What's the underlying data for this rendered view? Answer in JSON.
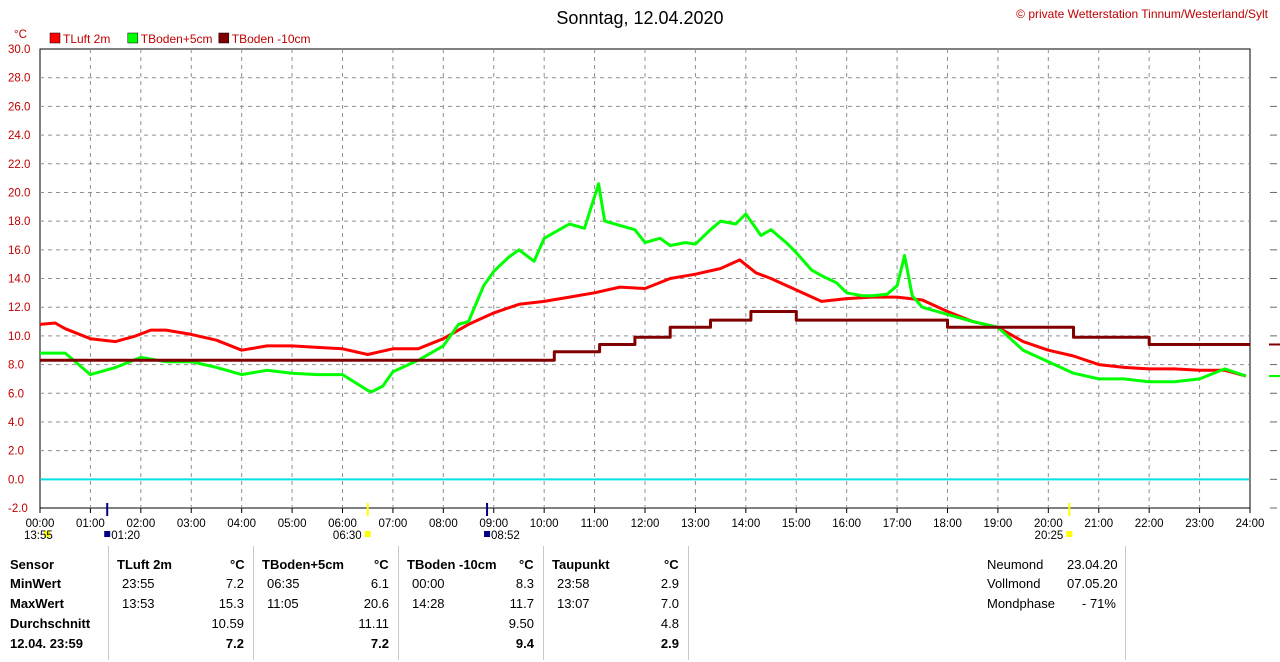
{
  "title": "Sonntag, 12.04.2020",
  "copyright": "© private Wetterstation Tinnum/Westerland/Sylt",
  "y_unit": "°C",
  "sun_moon_markers": [
    {
      "name": "sunrise",
      "label": "06:30",
      "x": 6.5,
      "color": "#ffff00"
    },
    {
      "name": "sunset",
      "label": "20:25",
      "x": 20.4167,
      "color": "#ffff00"
    },
    {
      "name": "moonrise",
      "label": "01:20",
      "x": 1.333,
      "color": "#000080"
    },
    {
      "name": "moonset",
      "label": "08:52",
      "x": 8.867,
      "color": "#000080"
    },
    {
      "name": "moonset-prev",
      "label": "13:55",
      "x": 0.0,
      "color": "#ffff00"
    }
  ],
  "chart_data": {
    "type": "line",
    "title": "Sonntag, 12.04.2020",
    "xlim": [
      0,
      24
    ],
    "ylim": [
      -2,
      30
    ],
    "x_ticks": [
      "00:00",
      "01:00",
      "02:00",
      "03:00",
      "04:00",
      "05:00",
      "06:00",
      "07:00",
      "08:00",
      "09:00",
      "10:00",
      "11:00",
      "12:00",
      "13:00",
      "14:00",
      "15:00",
      "16:00",
      "17:00",
      "18:00",
      "19:00",
      "20:00",
      "21:00",
      "22:00",
      "23:00",
      "24:00"
    ],
    "y_ticks": [
      "-2.0",
      "0.0",
      "2.0",
      "4.0",
      "6.0",
      "8.0",
      "10.0",
      "12.0",
      "14.0",
      "16.0",
      "18.0",
      "20.0",
      "22.0",
      "24.0",
      "26.0",
      "28.0",
      "30.0"
    ],
    "grid": true,
    "reference_line": {
      "y": 0,
      "color": "#00e0e0"
    },
    "series": [
      {
        "name": "TLuft 2m",
        "color": "#ff0000",
        "width": 3,
        "x": [
          0,
          0.3,
          0.5,
          1.0,
          1.5,
          1.9,
          2.2,
          2.5,
          3.0,
          3.5,
          4.0,
          4.5,
          5.0,
          5.5,
          6.0,
          6.5,
          7.0,
          7.5,
          8.0,
          8.5,
          9.0,
          9.5,
          10.0,
          10.5,
          11.0,
          11.5,
          12.0,
          12.5,
          13.0,
          13.5,
          13.88,
          14.2,
          14.5,
          15.0,
          15.5,
          16.0,
          16.5,
          17.0,
          17.5,
          18.0,
          18.5,
          19.0,
          19.5,
          20.0,
          20.5,
          21.0,
          21.5,
          22.0,
          22.5,
          23.0,
          23.5,
          23.92
        ],
        "y": [
          10.8,
          10.9,
          10.5,
          9.8,
          9.6,
          10.0,
          10.4,
          10.4,
          10.1,
          9.7,
          9.0,
          9.3,
          9.3,
          9.2,
          9.1,
          8.7,
          9.1,
          9.1,
          9.8,
          10.8,
          11.6,
          12.2,
          12.4,
          12.7,
          13.0,
          13.4,
          13.3,
          14.0,
          14.3,
          14.7,
          15.3,
          14.4,
          14.0,
          13.2,
          12.4,
          12.6,
          12.7,
          12.7,
          12.5,
          11.7,
          11.0,
          10.6,
          9.6,
          9.0,
          8.6,
          8.0,
          7.8,
          7.7,
          7.7,
          7.6,
          7.6,
          7.2
        ]
      },
      {
        "name": "TBoden+5cm",
        "color": "#00ff00",
        "width": 3,
        "x": [
          0,
          0.5,
          1.0,
          1.5,
          2.0,
          2.5,
          3.0,
          3.5,
          4.0,
          4.5,
          5.0,
          5.5,
          6.0,
          6.5,
          6.58,
          6.8,
          7.0,
          7.5,
          8.0,
          8.3,
          8.5,
          8.8,
          9.0,
          9.3,
          9.5,
          9.8,
          10.0,
          10.3,
          10.5,
          10.8,
          11.08,
          11.2,
          11.5,
          11.8,
          12.0,
          12.3,
          12.5,
          12.8,
          13.0,
          13.3,
          13.5,
          13.8,
          14.0,
          14.3,
          14.5,
          14.8,
          15.0,
          15.3,
          15.5,
          15.8,
          16.0,
          16.3,
          16.5,
          16.8,
          17.0,
          17.15,
          17.3,
          17.5,
          18.0,
          18.5,
          19.0,
          19.5,
          20.0,
          20.5,
          21.0,
          21.5,
          22.0,
          22.5,
          23.0,
          23.5,
          23.92
        ],
        "y": [
          8.8,
          8.8,
          7.3,
          7.8,
          8.5,
          8.2,
          8.2,
          7.8,
          7.3,
          7.6,
          7.4,
          7.3,
          7.3,
          6.2,
          6.1,
          6.5,
          7.5,
          8.3,
          9.3,
          10.8,
          11.0,
          13.5,
          14.5,
          15.5,
          16.0,
          15.2,
          16.8,
          17.4,
          17.8,
          17.5,
          20.6,
          18.0,
          17.7,
          17.4,
          16.5,
          16.8,
          16.3,
          16.5,
          16.4,
          17.4,
          18.0,
          17.8,
          18.5,
          17.0,
          17.4,
          16.5,
          15.8,
          14.6,
          14.2,
          13.7,
          13.0,
          12.8,
          12.8,
          12.9,
          13.5,
          15.6,
          12.8,
          12.0,
          11.5,
          11.0,
          10.6,
          9.0,
          8.2,
          7.4,
          7.0,
          7.0,
          6.8,
          6.8,
          7.0,
          7.7,
          7.2
        ]
      },
      {
        "name": "TBoden -10cm",
        "color": "#800000",
        "width": 3,
        "x": [
          0,
          10.2,
          10.2,
          11.1,
          11.1,
          11.8,
          11.8,
          12.5,
          12.5,
          13.3,
          13.3,
          14.1,
          14.1,
          15.0,
          15.0,
          18.0,
          18.0,
          20.5,
          20.5,
          22.0,
          22.0,
          23.5,
          23.5,
          24.0
        ],
        "y": [
          8.3,
          8.3,
          8.9,
          8.9,
          9.4,
          9.4,
          9.9,
          9.9,
          10.6,
          10.6,
          11.1,
          11.1,
          11.7,
          11.7,
          11.1,
          11.1,
          10.6,
          10.6,
          9.9,
          9.9,
          9.4,
          9.4,
          9.4,
          9.4
        ]
      }
    ]
  },
  "table": {
    "sensor_header": "Sensor",
    "rows": [
      "MinWert",
      "MaxWert",
      "Durchschnitt",
      "12.04. 23:59"
    ],
    "unit": "°C",
    "columns": [
      {
        "name": "TLuft 2m",
        "min_time": "23:55",
        "min": "7.2",
        "max_time": "13:53",
        "max": "15.3",
        "avg": "10.59",
        "current": "7.2"
      },
      {
        "name": "TBoden+5cm",
        "min_time": "06:35",
        "min": "6.1",
        "max_time": "11:05",
        "max": "20.6",
        "avg": "11.11",
        "current": "7.2"
      },
      {
        "name": "TBoden -10cm",
        "min_time": "00:00",
        "min": "8.3",
        "max_time": "14:28",
        "max": "11.7",
        "avg": "9.50",
        "current": "9.4"
      },
      {
        "name": "Taupunkt",
        "min_time": "23:58",
        "min": "2.9",
        "max_time": "13:07",
        "max": "7.0",
        "avg": "4.8",
        "current": "2.9"
      }
    ],
    "moon": [
      {
        "label": "Neumond",
        "value": "23.04.20"
      },
      {
        "label": "Vollmond",
        "value": "07.05.20"
      },
      {
        "label": "Mondphase",
        "value": "- 71%"
      }
    ]
  }
}
